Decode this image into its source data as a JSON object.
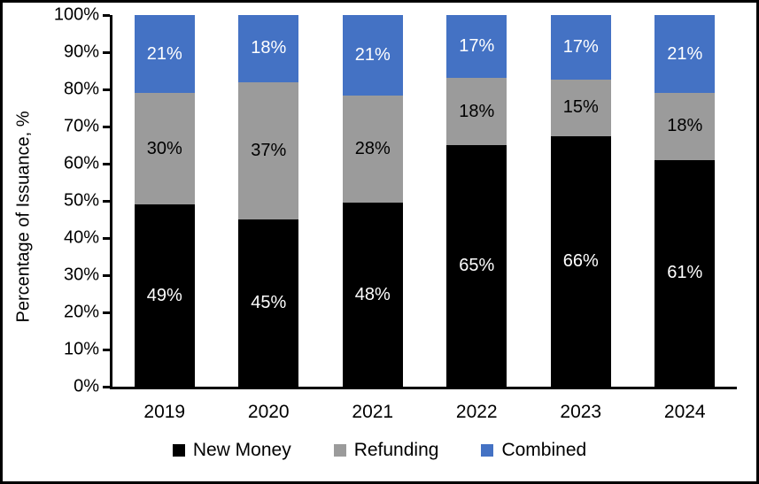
{
  "chart_data": {
    "type": "bar",
    "stacked": true,
    "percent_stacked": true,
    "title": "",
    "xlabel": "",
    "ylabel": "Percentage of Issuance, %",
    "ylim": [
      0,
      100
    ],
    "ytick_step": 10,
    "ytick_labels": [
      "0%",
      "10%",
      "20%",
      "30%",
      "40%",
      "50%",
      "60%",
      "70%",
      "80%",
      "90%",
      "100%"
    ],
    "categories": [
      "2019",
      "2020",
      "2021",
      "2022",
      "2023",
      "2024"
    ],
    "series": [
      {
        "name": "New Money",
        "color": "#000000",
        "label_color": "#FFFFFF",
        "values": [
          49,
          45,
          48,
          65,
          66,
          61
        ]
      },
      {
        "name": "Refunding",
        "color": "#9B9B9B",
        "label_color": "#000000",
        "values": [
          30,
          37,
          28,
          18,
          15,
          18
        ]
      },
      {
        "name": "Combined",
        "color": "#4472C4",
        "label_color": "#FFFFFF",
        "values": [
          21,
          18,
          21,
          17,
          17,
          21
        ]
      }
    ],
    "data_label_suffix": "%",
    "data_labels": true,
    "legend_position": "bottom",
    "grid": false,
    "axis_color": "#000000",
    "background_color": "#FFFFFF",
    "border_color": "#000000"
  }
}
